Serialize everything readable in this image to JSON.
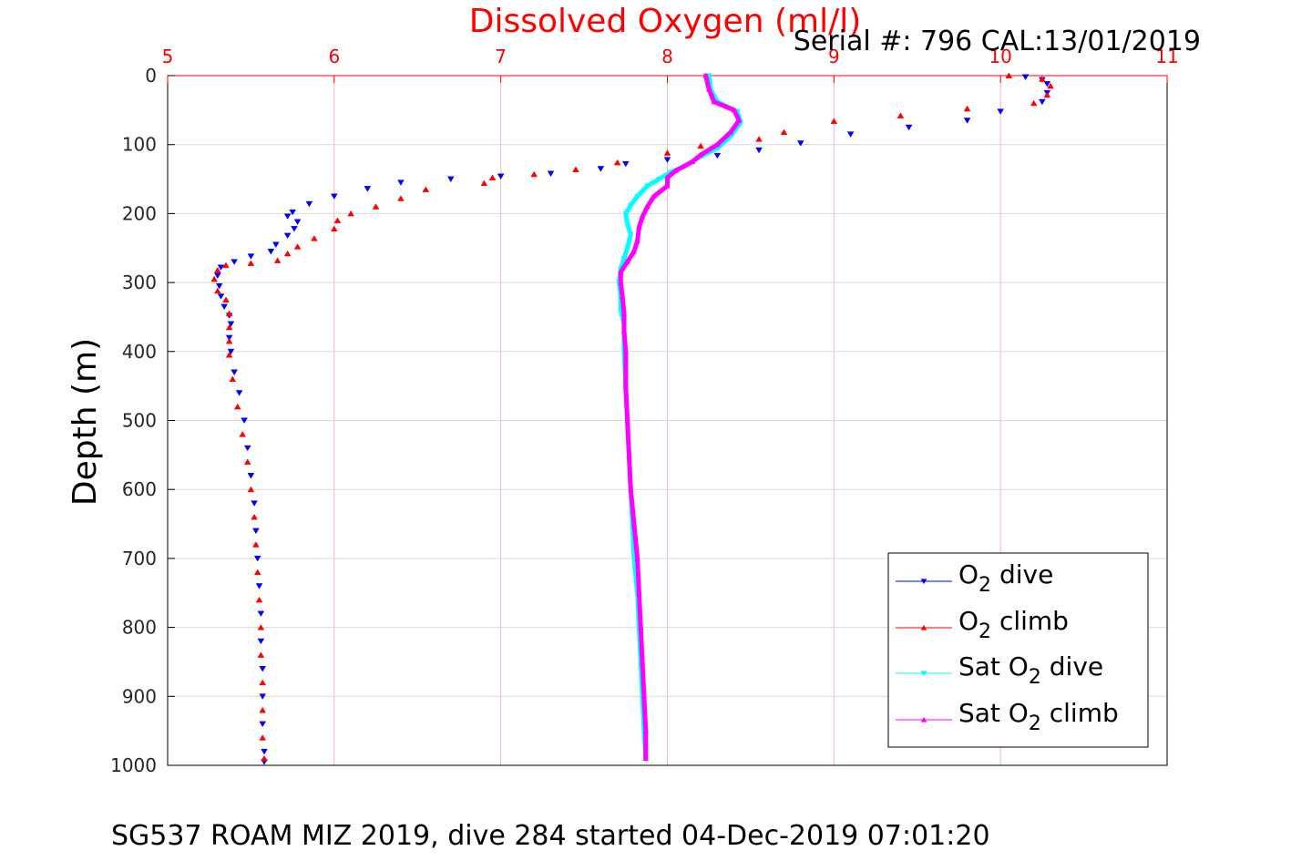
{
  "figure": {
    "serial_label": "Serial #: 796  CAL:13/01/2019",
    "footer_caption": "SG537 ROAM MIZ 2019, dive 284 started 04-Dec-2019 07:01:20"
  },
  "colors": {
    "top_axis": "#ff0000",
    "grid_top": "#ffb3b3",
    "grid_left": "#d9d9d9",
    "o2_dive": "#0000ff",
    "o2_climb": "#ff0000",
    "sat_dive": "#00ffff",
    "sat_climb": "#ff00ff"
  },
  "chart_data": {
    "type": "scatter",
    "title": "Dissolved Oxygen (ml/l)",
    "xlabel": "",
    "ylabel": "Depth (m)",
    "xlim": [
      5,
      11
    ],
    "ylim": [
      0,
      1000
    ],
    "y_reversed": true,
    "x_axis_position": "top",
    "x_ticks": [
      5,
      6,
      7,
      8,
      9,
      10,
      11
    ],
    "y_ticks": [
      0,
      100,
      200,
      300,
      400,
      500,
      600,
      700,
      800,
      900,
      1000
    ],
    "grid": true,
    "legend_position": "bottom-right",
    "series": [
      {
        "name": "O2 dive",
        "legend_parts": [
          "O",
          "2",
          " dive"
        ],
        "color": "#0000ff",
        "marker": "triangle-down",
        "points": [
          [
            10.15,
            2
          ],
          [
            10.25,
            6
          ],
          [
            10.28,
            12
          ],
          [
            10.28,
            25
          ],
          [
            10.25,
            38
          ],
          [
            10.0,
            52
          ],
          [
            9.8,
            65
          ],
          [
            9.45,
            75
          ],
          [
            9.1,
            85
          ],
          [
            8.8,
            98
          ],
          [
            8.55,
            108
          ],
          [
            8.3,
            116
          ],
          [
            8.0,
            122
          ],
          [
            7.75,
            128
          ],
          [
            7.6,
            135
          ],
          [
            7.3,
            142
          ],
          [
            7.0,
            146
          ],
          [
            6.7,
            150
          ],
          [
            6.4,
            155
          ],
          [
            6.2,
            164
          ],
          [
            6.0,
            175
          ],
          [
            5.85,
            186
          ],
          [
            5.75,
            198
          ],
          [
            5.72,
            204
          ],
          [
            5.78,
            212
          ],
          [
            5.76,
            222
          ],
          [
            5.72,
            232
          ],
          [
            5.65,
            245
          ],
          [
            5.62,
            255
          ],
          [
            5.5,
            262
          ],
          [
            5.4,
            270
          ],
          [
            5.32,
            278
          ],
          [
            5.3,
            290
          ],
          [
            5.31,
            305
          ],
          [
            5.32,
            320
          ],
          [
            5.34,
            335
          ],
          [
            5.37,
            348
          ],
          [
            5.38,
            360
          ],
          [
            5.37,
            380
          ],
          [
            5.38,
            400
          ],
          [
            5.4,
            430
          ],
          [
            5.43,
            460
          ],
          [
            5.46,
            500
          ],
          [
            5.48,
            540
          ],
          [
            5.5,
            580
          ],
          [
            5.52,
            620
          ],
          [
            5.53,
            660
          ],
          [
            5.54,
            700
          ],
          [
            5.55,
            740
          ],
          [
            5.56,
            780
          ],
          [
            5.56,
            820
          ],
          [
            5.57,
            860
          ],
          [
            5.57,
            900
          ],
          [
            5.57,
            940
          ],
          [
            5.58,
            980
          ],
          [
            5.58,
            995
          ]
        ]
      },
      {
        "name": "O2 climb",
        "legend_parts": [
          "O",
          "2",
          " climb"
        ],
        "color": "#ff0000",
        "marker": "triangle-up",
        "points": [
          [
            10.05,
            0
          ],
          [
            10.25,
            5
          ],
          [
            10.3,
            15
          ],
          [
            10.28,
            28
          ],
          [
            10.2,
            40
          ],
          [
            9.8,
            48
          ],
          [
            9.4,
            58
          ],
          [
            9.0,
            66
          ],
          [
            8.7,
            82
          ],
          [
            8.55,
            92
          ],
          [
            8.2,
            102
          ],
          [
            8.0,
            112
          ],
          [
            7.7,
            126
          ],
          [
            7.45,
            136
          ],
          [
            7.2,
            143
          ],
          [
            6.95,
            148
          ],
          [
            6.9,
            156
          ],
          [
            6.55,
            165
          ],
          [
            6.4,
            178
          ],
          [
            6.25,
            190
          ],
          [
            6.1,
            200
          ],
          [
            6.02,
            210
          ],
          [
            6.0,
            222
          ],
          [
            5.88,
            236
          ],
          [
            5.78,
            248
          ],
          [
            5.72,
            258
          ],
          [
            5.66,
            268
          ],
          [
            5.5,
            272
          ],
          [
            5.35,
            275
          ],
          [
            5.3,
            282
          ],
          [
            5.28,
            295
          ],
          [
            5.3,
            312
          ],
          [
            5.35,
            325
          ],
          [
            5.37,
            345
          ],
          [
            5.37,
            365
          ],
          [
            5.37,
            385
          ],
          [
            5.37,
            405
          ],
          [
            5.39,
            440
          ],
          [
            5.42,
            480
          ],
          [
            5.45,
            520
          ],
          [
            5.48,
            560
          ],
          [
            5.5,
            600
          ],
          [
            5.52,
            640
          ],
          [
            5.53,
            680
          ],
          [
            5.54,
            720
          ],
          [
            5.55,
            760
          ],
          [
            5.56,
            800
          ],
          [
            5.56,
            840
          ],
          [
            5.57,
            880
          ],
          [
            5.57,
            920
          ],
          [
            5.57,
            960
          ],
          [
            5.58,
            990
          ]
        ]
      },
      {
        "name": "Sat O2 dive",
        "legend_parts": [
          "Sat O",
          "2",
          " dive"
        ],
        "color": "#00ffff",
        "marker": "triangle-down",
        "points": [
          [
            8.25,
            0
          ],
          [
            8.26,
            20
          ],
          [
            8.3,
            38
          ],
          [
            8.42,
            52
          ],
          [
            8.44,
            68
          ],
          [
            8.38,
            88
          ],
          [
            8.3,
            105
          ],
          [
            8.18,
            120
          ],
          [
            8.1,
            132
          ],
          [
            8.02,
            140
          ],
          [
            7.95,
            150
          ],
          [
            7.88,
            160
          ],
          [
            7.82,
            175
          ],
          [
            7.78,
            188
          ],
          [
            7.75,
            200
          ],
          [
            7.76,
            215
          ],
          [
            7.78,
            230
          ],
          [
            7.76,
            250
          ],
          [
            7.74,
            265
          ],
          [
            7.72,
            280
          ],
          [
            7.71,
            300
          ],
          [
            7.72,
            320
          ],
          [
            7.72,
            340
          ],
          [
            7.74,
            360
          ],
          [
            7.74,
            400
          ],
          [
            7.75,
            450
          ],
          [
            7.76,
            500
          ],
          [
            7.77,
            550
          ],
          [
            7.78,
            600
          ],
          [
            7.79,
            650
          ],
          [
            7.8,
            700
          ],
          [
            7.82,
            750
          ],
          [
            7.83,
            800
          ],
          [
            7.84,
            850
          ],
          [
            7.85,
            900
          ],
          [
            7.86,
            950
          ],
          [
            7.87,
            990
          ]
        ]
      },
      {
        "name": "Sat O2 climb",
        "legend_parts": [
          "Sat O",
          "2",
          " climb"
        ],
        "color": "#ff00ff",
        "marker": "triangle-up",
        "points": [
          [
            8.23,
            0
          ],
          [
            8.25,
            20
          ],
          [
            8.28,
            38
          ],
          [
            8.4,
            50
          ],
          [
            8.43,
            65
          ],
          [
            8.38,
            82
          ],
          [
            8.3,
            100
          ],
          [
            8.2,
            115
          ],
          [
            8.15,
            125
          ],
          [
            8.05,
            138
          ],
          [
            8.0,
            148
          ],
          [
            8.0,
            160
          ],
          [
            7.92,
            175
          ],
          [
            7.88,
            190
          ],
          [
            7.85,
            205
          ],
          [
            7.83,
            220
          ],
          [
            7.82,
            240
          ],
          [
            7.8,
            255
          ],
          [
            7.76,
            270
          ],
          [
            7.72,
            285
          ],
          [
            7.72,
            300
          ],
          [
            7.73,
            320
          ],
          [
            7.74,
            345
          ],
          [
            7.74,
            370
          ],
          [
            7.75,
            400
          ],
          [
            7.75,
            450
          ],
          [
            7.76,
            500
          ],
          [
            7.77,
            550
          ],
          [
            7.78,
            600
          ],
          [
            7.8,
            650
          ],
          [
            7.82,
            700
          ],
          [
            7.83,
            750
          ],
          [
            7.84,
            800
          ],
          [
            7.85,
            850
          ],
          [
            7.86,
            900
          ],
          [
            7.87,
            950
          ],
          [
            7.87,
            990
          ]
        ]
      }
    ]
  }
}
